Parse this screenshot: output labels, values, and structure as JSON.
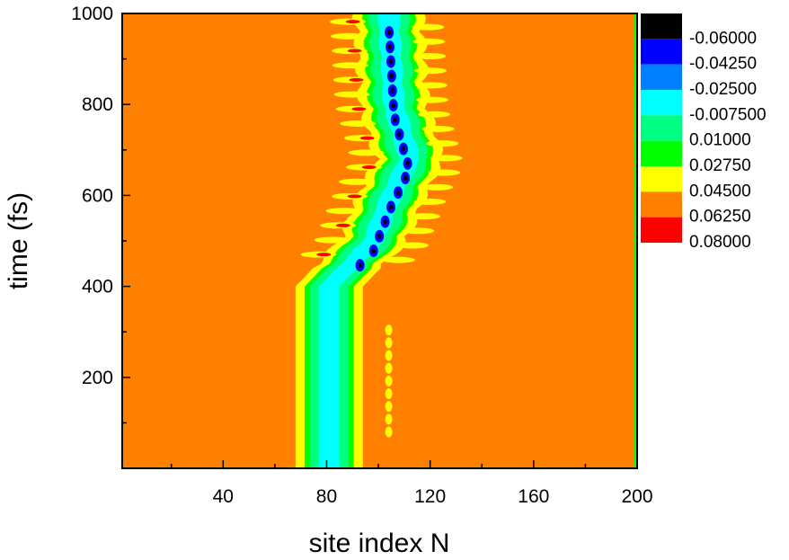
{
  "chart_data": {
    "type": "heatmap",
    "subtype": "filled contour",
    "title": "",
    "xlabel": "site index N",
    "ylabel": "time (fs)",
    "xlim": [
      1,
      200
    ],
    "ylim": [
      0,
      1000
    ],
    "x_ticks": [
      "40",
      "80",
      "120",
      "160",
      "200"
    ],
    "y_ticks": [
      "200",
      "400",
      "600",
      "800",
      "1000"
    ],
    "background_level_color": "#FF8000",
    "grid": false,
    "legend_placement": "right",
    "color_levels": [
      {
        "label": "-0.06000",
        "color": "#000000"
      },
      {
        "label": "-0.04250",
        "color": "#0000FF"
      },
      {
        "label": "-0.02500",
        "color": "#0080FF"
      },
      {
        "label": "-0.007500",
        "color": "#00FFFF"
      },
      {
        "label": "0.01000",
        "color": "#00FF80"
      },
      {
        "label": "0.02750",
        "color": "#00FF00"
      },
      {
        "label": "0.04500",
        "color": "#FFFF00"
      },
      {
        "label": "0.06250",
        "color": "#FF8000"
      },
      {
        "label": "0.08000",
        "color": "#FF0000"
      }
    ],
    "wavepacket_band": {
      "description_points": [
        {
          "time": 0,
          "center_site": 81
        },
        {
          "time": 400,
          "center_site": 81
        },
        {
          "time": 500,
          "center_site": 98
        },
        {
          "time": 600,
          "center_site": 105
        },
        {
          "time": 680,
          "center_site": 112
        },
        {
          "time": 800,
          "center_site": 106
        },
        {
          "time": 1000,
          "center_site": 104
        }
      ]
    }
  }
}
